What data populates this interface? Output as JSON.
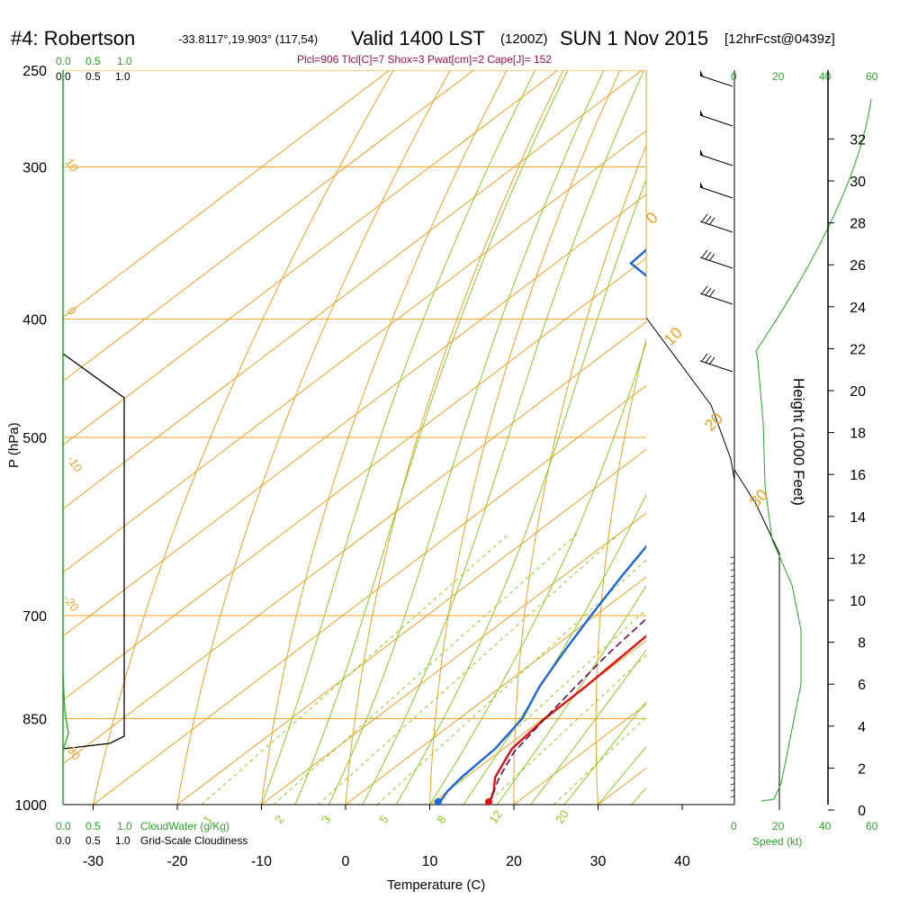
{
  "header": {
    "station": "#4: Robertson",
    "coords": "-33.8117°,19.903° (117,54)",
    "valid": "Valid 1400 LST",
    "zulu": "(1200Z)",
    "date": "SUN 1 Nov 2015",
    "forecast": "[12hrFcst@0439z]",
    "indices": "Plcl=906 Tlcl[C]=7 Shox=3 Pwat[cm]=2 Cape[J]= 152"
  },
  "labels": {
    "cloudwater_scale": [
      "0.0",
      "0.5",
      "1.0"
    ],
    "cloudiness_scale": [
      "0.0",
      "0.5",
      "1.0"
    ],
    "cloudwater_label": "CloudWater (g/Kg)",
    "cloudiness_label": "Grid-Scale Cloudiness",
    "speed_scale": [
      "0",
      "20",
      "40",
      "60"
    ],
    "speed_label": "Speed (kt)"
  },
  "chart_data": {
    "type": "line",
    "title": "Skew-T sounding",
    "xlabel": "Temperature (C)",
    "ylabel": "P (hPa)",
    "y2label": "Height (1000 Feet)",
    "x_ticks": [
      -30,
      -20,
      -10,
      0,
      10,
      20,
      30,
      40
    ],
    "p_ticks": [
      250,
      300,
      400,
      500,
      700,
      850,
      1000
    ],
    "height_ticks": [
      0,
      2,
      4,
      6,
      8,
      10,
      12,
      14,
      16,
      18,
      20,
      22,
      24,
      26,
      28,
      30,
      32
    ],
    "isotherm_labels": [
      "-10",
      "0",
      "10",
      "20",
      "30"
    ],
    "mixing_ratio_labels": [
      "1",
      "2",
      "3",
      "5",
      "8",
      "12",
      "20"
    ],
    "dry_adiabat_labels": [
      "10",
      "0",
      "-10",
      "-20",
      "-30"
    ],
    "series": [
      {
        "name": "Temperature",
        "color": "#e01010",
        "points": [
          [
            17.0,
            1000
          ],
          [
            15.5,
            975
          ],
          [
            13.5,
            950
          ],
          [
            11.0,
            900
          ],
          [
            10.2,
            850
          ],
          [
            10.0,
            800
          ],
          [
            9.0,
            700
          ],
          [
            7.5,
            650
          ],
          [
            6.0,
            600
          ],
          [
            4.0,
            550
          ],
          [
            2.0,
            500
          ],
          [
            -1.0,
            450
          ],
          [
            -4.0,
            425
          ],
          [
            -3.8,
            400
          ],
          [
            -4.5,
            350
          ],
          [
            -5.5,
            300
          ],
          [
            -8.0,
            260
          ]
        ]
      },
      {
        "name": "Dewpoint",
        "color": "#1a66e0",
        "points": [
          [
            11.0,
            1000
          ],
          [
            10.0,
            975
          ],
          [
            9.5,
            950
          ],
          [
            9.0,
            900
          ],
          [
            7.5,
            850
          ],
          [
            4.5,
            800
          ],
          [
            2.0,
            750
          ],
          [
            -0.5,
            700
          ],
          [
            -3.0,
            650
          ],
          [
            -5.5,
            600
          ],
          [
            -9.0,
            550
          ],
          [
            -13.0,
            500
          ],
          [
            -17.0,
            450
          ],
          [
            -21.0,
            425
          ],
          [
            -34.0,
            400
          ],
          [
            -51.0,
            360
          ],
          [
            -53.0,
            300
          ],
          [
            -43.0,
            280
          ],
          [
            -39.0,
            260
          ]
        ]
      },
      {
        "name": "Parcel",
        "color": "#6a0a50",
        "points": [
          [
            17.0,
            1000
          ],
          [
            14.0,
            950
          ],
          [
            11.8,
            906
          ],
          [
            10.2,
            850
          ],
          [
            8.8,
            800
          ],
          [
            7.5,
            750
          ],
          [
            6.5,
            700
          ],
          [
            5.5,
            650
          ]
        ]
      }
    ],
    "markers": [
      {
        "name": "surface temperature",
        "x": 17.0,
        "p": 1000,
        "color": "#e01010"
      },
      {
        "name": "surface dewpoint",
        "x": 11.0,
        "p": 1000,
        "color": "#1a66e0"
      }
    ]
  }
}
